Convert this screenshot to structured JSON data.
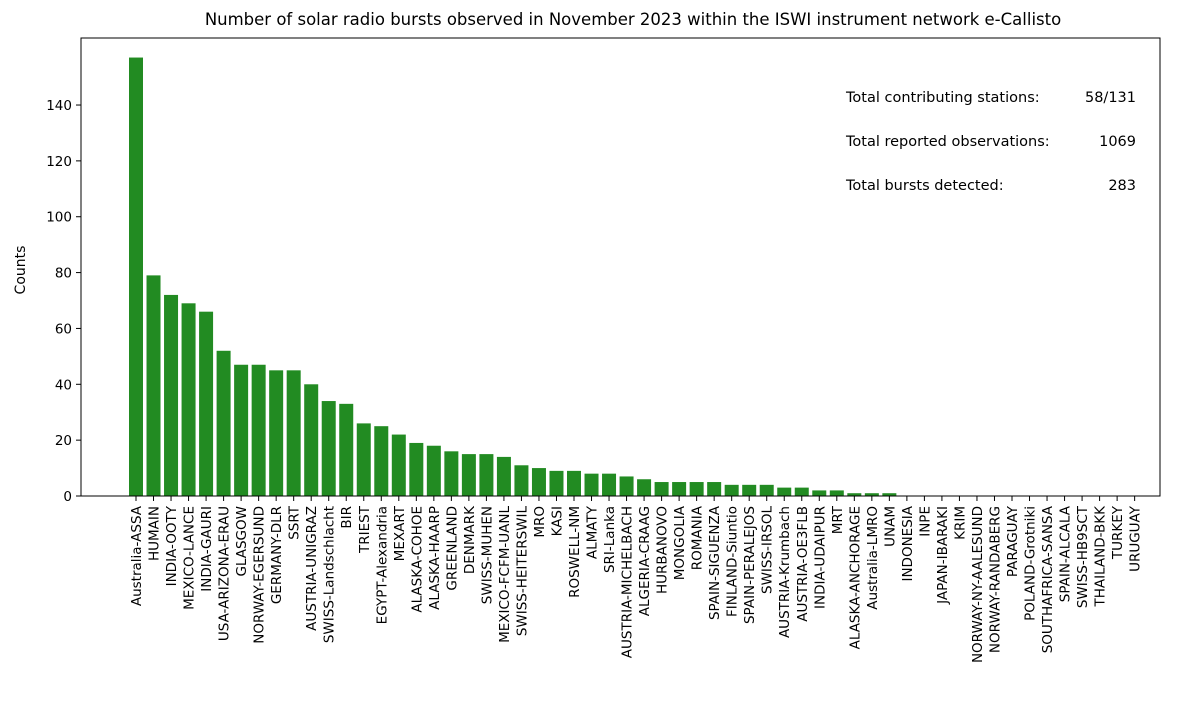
{
  "chart_data": {
    "type": "bar",
    "title": "Number of solar radio bursts observed in November 2023 within the ISWI instrument network e-Callisto",
    "xlabel": "",
    "ylabel": "Counts",
    "ylim": [
      0,
      164
    ],
    "yticks": [
      0,
      20,
      40,
      60,
      80,
      100,
      120,
      140
    ],
    "bar_color": "#228b22",
    "categories": [
      "Australia-ASSA",
      "HUMAIN",
      "INDIA-OOTY",
      "MEXICO-LANCE",
      "INDIA-GAURI",
      "USA-ARIZONA-ERAU",
      "GLASGOW",
      "NORWAY-EGERSUND",
      "GERMANY-DLR",
      "SSRT",
      "AUSTRIA-UNIGRAZ",
      "SWISS-Landschlacht",
      "BIR",
      "TRIEST",
      "EGYPT-Alexandria",
      "MEXART",
      "ALASKA-COHOE",
      "ALASKA-HAARP",
      "GREENLAND",
      "DENMARK",
      "SWISS-MUHEN",
      "MEXICO-FCFM-UANL",
      "SWISS-HEITERSWIL",
      "MRO",
      "KASI",
      "ROSWELL-NM",
      "ALMATY",
      "SRI-Lanka",
      "AUSTRIA-MICHELBACH",
      "ALGERIA-CRAAG",
      "HURBANOVO",
      "MONGOLIA",
      "ROMANIA",
      "SPAIN-SIGUENZA",
      "FINLAND-Siuntio",
      "SPAIN-PERALEJOS",
      "SWISS-IRSOL",
      "AUSTRIA-Krumbach",
      "AUSTRIA-OE3FLB",
      "INDIA-UDAIPUR",
      "MRT",
      "ALASKA-ANCHORAGE",
      "Australia-LMRO",
      "UNAM",
      "INDONESIA",
      "INPE",
      "JAPAN-IBARAKI",
      "KRIM",
      "NORWAY-NY-AALESUND",
      "NORWAY-RANDABERG",
      "PARAGUAY",
      "POLAND-Grotniki",
      "SOUTHAFRICA-SANSA",
      "SPAIN-ALCALA",
      "SWISS-HB9SCT",
      "THAILAND-BKK",
      "TURKEY",
      "URUGUAY"
    ],
    "values": [
      157,
      79,
      72,
      69,
      66,
      52,
      47,
      47,
      45,
      45,
      40,
      34,
      33,
      26,
      25,
      22,
      19,
      18,
      16,
      15,
      15,
      14,
      11,
      10,
      9,
      9,
      8,
      8,
      7,
      6,
      5,
      5,
      5,
      5,
      4,
      4,
      4,
      3,
      3,
      2,
      2,
      1,
      1,
      1,
      0,
      0,
      0,
      0,
      0,
      0,
      0,
      0,
      0,
      0,
      0,
      0,
      0,
      0
    ],
    "annotations": [
      {
        "label": "Total contributing stations:",
        "value": "58/131"
      },
      {
        "label": "Total reported observations:",
        "value": "1069"
      },
      {
        "label": "Total bursts detected:",
        "value": "283"
      }
    ],
    "grid": false,
    "legend": "none"
  }
}
